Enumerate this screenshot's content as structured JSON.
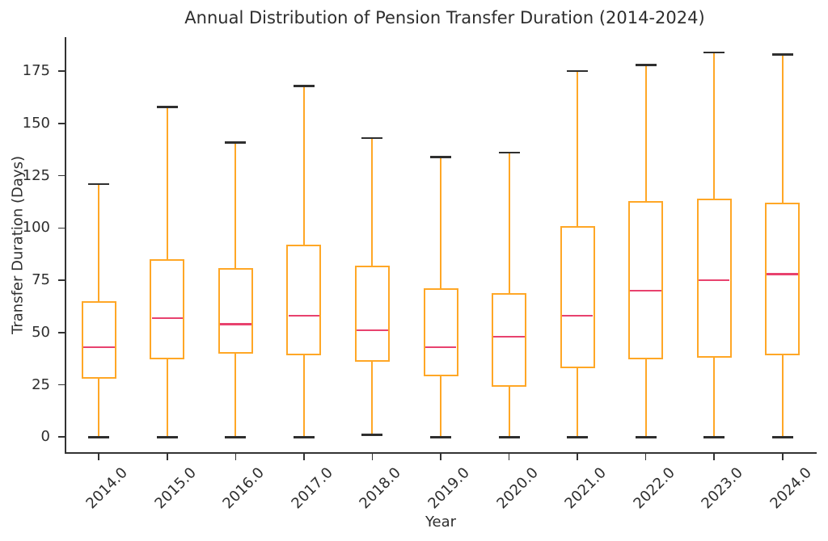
{
  "chart_data": {
    "type": "boxplot",
    "title": "Annual Distribution of Pension Transfer Duration (2014-2024)",
    "xlabel": "Year",
    "ylabel": "Transfer Duration (Days)",
    "categories": [
      "2014.0",
      "2015.0",
      "2016.0",
      "2017.0",
      "2018.0",
      "2019.0",
      "2020.0",
      "2021.0",
      "2022.0",
      "2023.0",
      "2024.0"
    ],
    "yticks": [
      0,
      25,
      50,
      75,
      100,
      125,
      150,
      175
    ],
    "ylim": [
      -8,
      191.3
    ],
    "grid": false,
    "legend": null,
    "series": [
      {
        "category": "2014.0",
        "whisker_low": 0,
        "q1": 28,
        "median": 43,
        "q3": 65,
        "whisker_high": 121
      },
      {
        "category": "2015.0",
        "whisker_low": 0,
        "q1": 37,
        "median": 57,
        "q3": 85,
        "whisker_high": 158
      },
      {
        "category": "2016.0",
        "whisker_low": 0,
        "q1": 40,
        "median": 54,
        "q3": 81,
        "whisker_high": 141
      },
      {
        "category": "2017.0",
        "whisker_low": 0,
        "q1": 39,
        "median": 58,
        "q3": 92,
        "whisker_high": 168
      },
      {
        "category": "2018.0",
        "whisker_low": 1,
        "q1": 36,
        "median": 51,
        "q3": 82,
        "whisker_high": 143
      },
      {
        "category": "2019.0",
        "whisker_low": 0,
        "q1": 29,
        "median": 43,
        "q3": 71,
        "whisker_high": 134
      },
      {
        "category": "2020.0",
        "whisker_low": 0,
        "q1": 24,
        "median": 48,
        "q3": 69,
        "whisker_high": 136
      },
      {
        "category": "2021.0",
        "whisker_low": 0,
        "q1": 33,
        "median": 58,
        "q3": 101,
        "whisker_high": 175
      },
      {
        "category": "2022.0",
        "whisker_low": 0,
        "q1": 37,
        "median": 70,
        "q3": 113,
        "whisker_high": 178
      },
      {
        "category": "2023.0",
        "whisker_low": 0,
        "q1": 38,
        "median": 75,
        "q3": 114,
        "whisker_high": 184
      },
      {
        "category": "2024.0",
        "whisker_low": 0,
        "q1": 39,
        "median": 78,
        "q3": 112,
        "whisker_high": 183
      }
    ],
    "colors": {
      "box_line": "#FFA726",
      "median_line": "#E8426E",
      "whisker_cap": "#2F2F2F",
      "axis": "#333333",
      "tick_text": "#2E2E2E"
    }
  }
}
